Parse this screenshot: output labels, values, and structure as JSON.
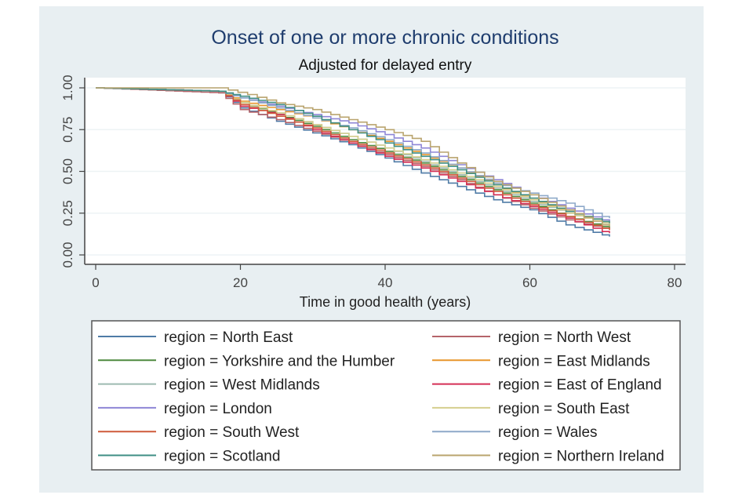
{
  "chart_data": {
    "type": "line",
    "step": true,
    "title": "Onset of one or more chronic conditions",
    "subtitle": "Adjusted for delayed entry",
    "xlabel": "Time in good health (years)",
    "ylabel": "",
    "xlim": [
      0,
      80
    ],
    "ylim": [
      0,
      1
    ],
    "xticks": [
      0,
      20,
      40,
      60,
      80
    ],
    "xtick_labels": [
      "0",
      "20",
      "40",
      "60",
      "80"
    ],
    "yticks": [
      0,
      0.25,
      0.5,
      0.75,
      1
    ],
    "ytick_labels": [
      "0.00",
      "0.25",
      "0.50",
      "0.75",
      "1.00"
    ],
    "grid": true,
    "legend_position": "bottom",
    "legend_columns": 2,
    "series": [
      {
        "name": "region = North East",
        "color": "#4f7ba6",
        "x": [
          0,
          17,
          20,
          25,
          30,
          35,
          40,
          45,
          50,
          55,
          60,
          65,
          70,
          71
        ],
        "y": [
          1.0,
          0.98,
          0.88,
          0.8,
          0.73,
          0.66,
          0.58,
          0.49,
          0.41,
          0.33,
          0.27,
          0.18,
          0.12,
          0.11
        ]
      },
      {
        "name": "region = North West",
        "color": "#b5646a",
        "x": [
          0,
          17,
          20,
          25,
          30,
          35,
          40,
          45,
          50,
          55,
          60,
          65,
          70,
          71
        ],
        "y": [
          1.0,
          0.97,
          0.87,
          0.81,
          0.74,
          0.67,
          0.6,
          0.53,
          0.45,
          0.36,
          0.28,
          0.21,
          0.16,
          0.15
        ]
      },
      {
        "name": "region = Yorkshire and the Humber",
        "color": "#4e8a3f",
        "x": [
          0,
          17,
          20,
          25,
          30,
          35,
          40,
          45,
          50,
          55,
          60,
          65,
          70,
          71
        ],
        "y": [
          1.0,
          0.98,
          0.91,
          0.84,
          0.77,
          0.69,
          0.62,
          0.55,
          0.47,
          0.39,
          0.31,
          0.23,
          0.17,
          0.16
        ]
      },
      {
        "name": "region = East Midlands",
        "color": "#e8952a",
        "x": [
          0,
          17,
          20,
          25,
          30,
          35,
          40,
          45,
          50,
          55,
          60,
          65,
          70,
          71
        ],
        "y": [
          1.0,
          0.98,
          0.92,
          0.87,
          0.82,
          0.75,
          0.68,
          0.6,
          0.52,
          0.42,
          0.33,
          0.26,
          0.2,
          0.19
        ]
      },
      {
        "name": "region = West Midlands",
        "color": "#9dbab0",
        "x": [
          0,
          17,
          20,
          25,
          30,
          35,
          40,
          45,
          50,
          55,
          60,
          65,
          70,
          71
        ],
        "y": [
          1.0,
          0.98,
          0.91,
          0.85,
          0.78,
          0.71,
          0.64,
          0.56,
          0.48,
          0.4,
          0.32,
          0.25,
          0.19,
          0.18
        ]
      },
      {
        "name": "region = East of England",
        "color": "#d42f55",
        "x": [
          0,
          17,
          20,
          25,
          30,
          35,
          40,
          45,
          50,
          55,
          60,
          65,
          70,
          71
        ],
        "y": [
          1.0,
          0.98,
          0.89,
          0.84,
          0.75,
          0.67,
          0.59,
          0.52,
          0.44,
          0.36,
          0.29,
          0.22,
          0.14,
          0.13
        ]
      },
      {
        "name": "region = London",
        "color": "#8e86d6",
        "x": [
          0,
          17,
          20,
          25,
          30,
          35,
          40,
          45,
          50,
          55,
          60,
          65,
          70,
          71
        ],
        "y": [
          1.0,
          0.98,
          0.94,
          0.89,
          0.84,
          0.79,
          0.72,
          0.64,
          0.54,
          0.45,
          0.36,
          0.28,
          0.21,
          0.2
        ]
      },
      {
        "name": "region = South East",
        "color": "#d5cf8e",
        "x": [
          0,
          17,
          20,
          25,
          30,
          35,
          40,
          45,
          50,
          55,
          60,
          65,
          70,
          71
        ],
        "y": [
          1.0,
          0.98,
          0.91,
          0.85,
          0.78,
          0.71,
          0.64,
          0.57,
          0.49,
          0.41,
          0.33,
          0.25,
          0.19,
          0.18
        ]
      },
      {
        "name": "region = South West",
        "color": "#cf5a3a",
        "x": [
          0,
          17,
          20,
          25,
          30,
          35,
          40,
          45,
          50,
          55,
          60,
          65,
          70,
          71
        ],
        "y": [
          1.0,
          0.98,
          0.9,
          0.83,
          0.76,
          0.68,
          0.61,
          0.54,
          0.46,
          0.38,
          0.3,
          0.23,
          0.16,
          0.15
        ]
      },
      {
        "name": "region = Wales",
        "color": "#8ea9c9",
        "x": [
          0,
          17,
          20,
          25,
          30,
          35,
          40,
          45,
          50,
          55,
          60,
          65,
          70,
          71
        ],
        "y": [
          1.0,
          0.98,
          0.94,
          0.88,
          0.82,
          0.76,
          0.69,
          0.61,
          0.52,
          0.43,
          0.37,
          0.31,
          0.23,
          0.22
        ]
      },
      {
        "name": "region = Scotland",
        "color": "#3f8f84",
        "x": [
          0,
          17,
          20,
          25,
          30,
          35,
          40,
          45,
          50,
          55,
          60,
          65,
          70,
          71
        ],
        "y": [
          1.0,
          0.98,
          0.95,
          0.9,
          0.83,
          0.75,
          0.67,
          0.59,
          0.51,
          0.42,
          0.34,
          0.26,
          0.2,
          0.19
        ]
      },
      {
        "name": "region = Northern Ireland",
        "color": "#b9a46e",
        "x": [
          0,
          17,
          21,
          25,
          30,
          35,
          40,
          45,
          50,
          55,
          60,
          65,
          70,
          71
        ],
        "y": [
          1.0,
          1.0,
          0.96,
          0.91,
          0.87,
          0.81,
          0.75,
          0.68,
          0.55,
          0.44,
          0.36,
          0.27,
          0.18,
          0.17
        ]
      }
    ]
  }
}
